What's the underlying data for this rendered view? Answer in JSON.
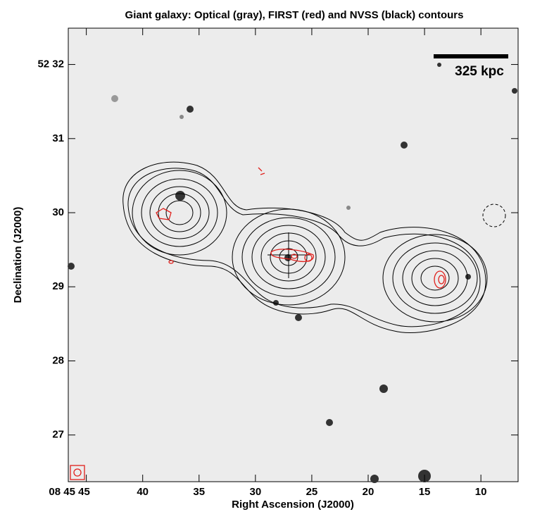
{
  "chart_data": {
    "type": "image",
    "title": "Giant galaxy: Optical (gray), FIRST (red) and NVSS (black) contours",
    "x_label": "Right Ascension (J2000)",
    "y_label": "Declination (J2000)",
    "scale_bar_label": "325 kpc",
    "xlim": [
      46.6,
      6.7
    ],
    "ylim": [
      26.37,
      32.49
    ],
    "xticks": [
      {
        "value": 45,
        "label": "08 45 45"
      },
      40,
      35,
      30,
      25,
      20,
      15,
      10
    ],
    "yticks": [
      27,
      28,
      29,
      30,
      31,
      {
        "value": 32,
        "label": "52 32"
      }
    ]
  }
}
